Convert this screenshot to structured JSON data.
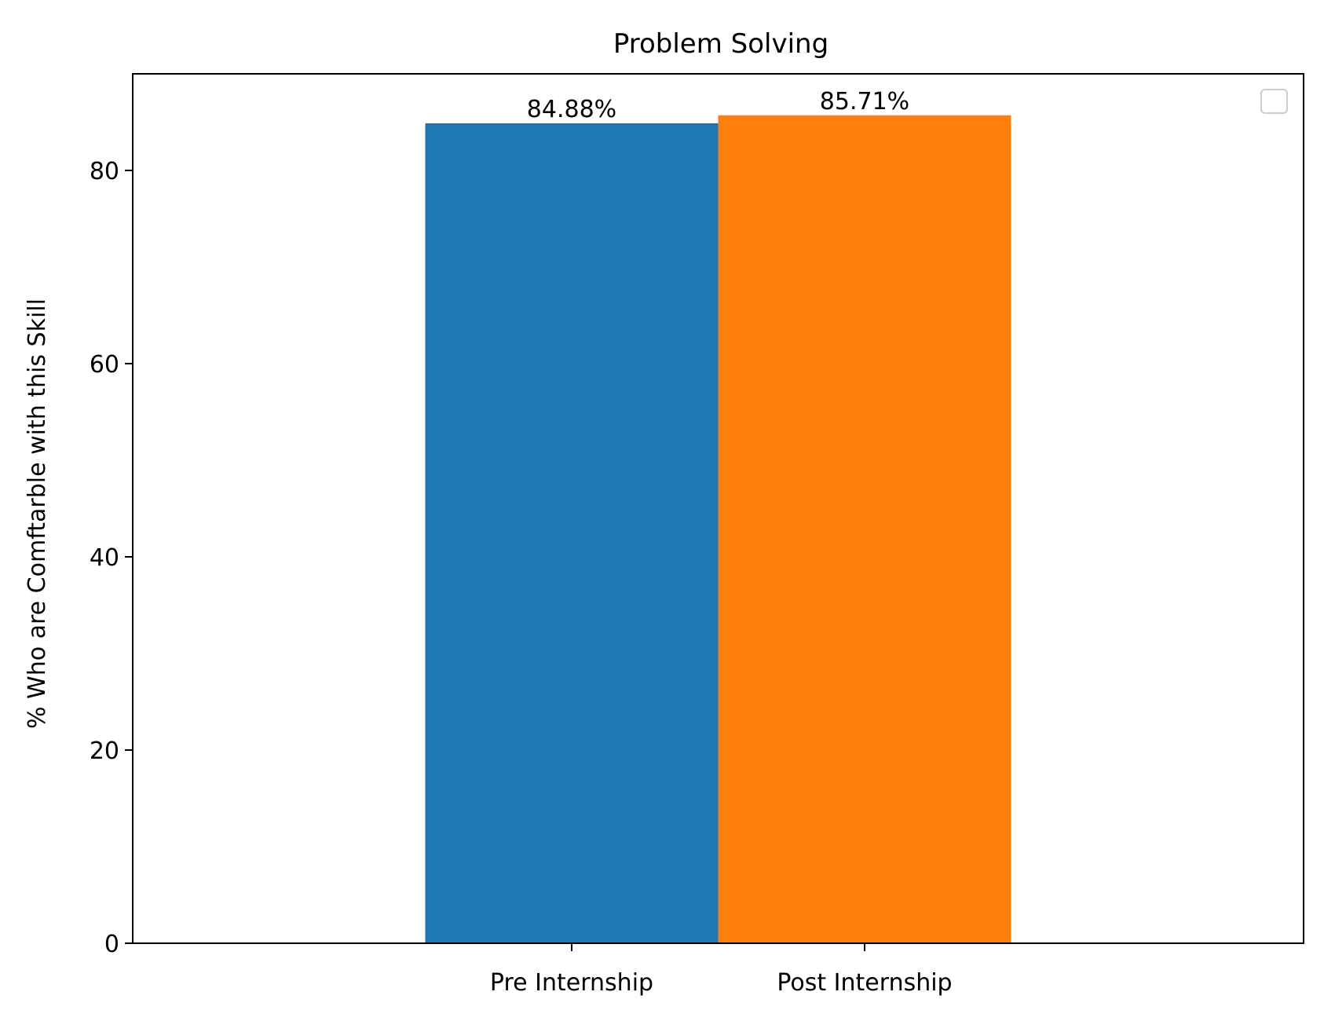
{
  "chart_data": {
    "type": "bar",
    "title": "Problem Solving",
    "xlabel": "",
    "ylabel": "% Who are Comftarble with this Skill",
    "categories": [
      "Pre Internship",
      "Post Internship"
    ],
    "values": [
      84.88,
      85.71
    ],
    "value_labels": [
      "84.88%",
      "85.71%"
    ],
    "colors": [
      "#1f77b4",
      "#ff7f0e"
    ],
    "ylim": [
      0,
      90
    ],
    "yticks": [
      0,
      20,
      40,
      60,
      80
    ],
    "ytick_labels": [
      "0",
      "20",
      "40",
      "60",
      "80"
    ],
    "grid": false,
    "legend": {
      "placement": "top-right",
      "entries": []
    }
  }
}
